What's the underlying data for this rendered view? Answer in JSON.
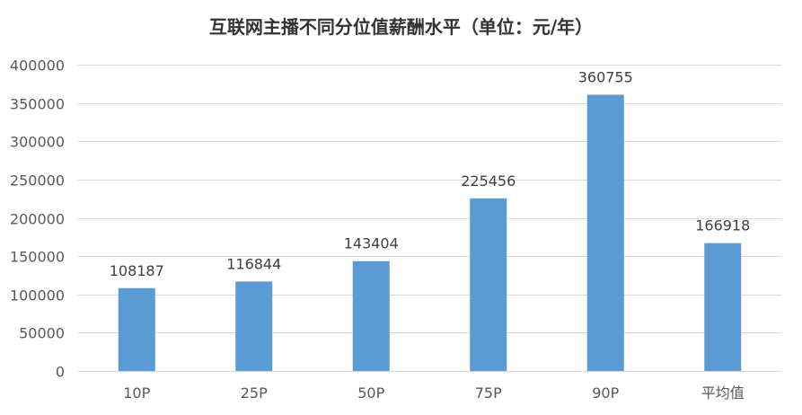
{
  "chart_data": {
    "type": "bar",
    "title": "互联网主播不同分位值薪酬水平（单位：元/年）",
    "xlabel": "",
    "ylabel": "",
    "categories": [
      "10P",
      "25P",
      "50P",
      "75P",
      "90P",
      "平均值"
    ],
    "values": [
      108187,
      116844,
      143404,
      225456,
      360755,
      166918
    ],
    "ylim": [
      0,
      400000
    ],
    "yticks": [
      0,
      50000,
      100000,
      150000,
      200000,
      250000,
      300000,
      350000,
      400000
    ],
    "bar_color": "#5b9bd5",
    "grid": true,
    "legend": "none"
  }
}
